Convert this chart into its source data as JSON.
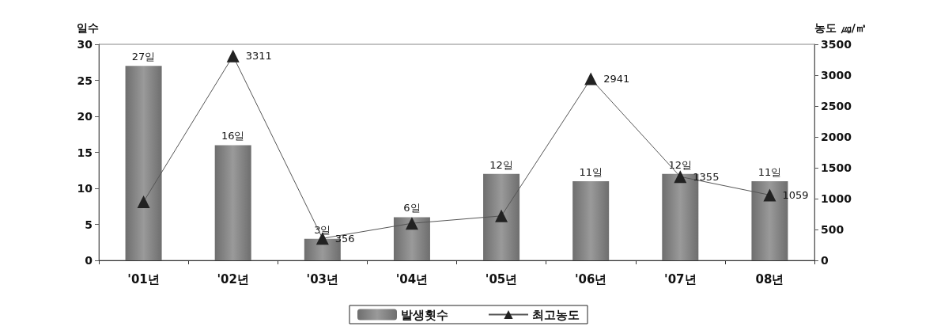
{
  "chart_data": {
    "type": "bar",
    "ylabel": "일수",
    "y2label": "농도 ㎍/㎥",
    "categories": [
      "'01년",
      "'02년",
      "'03년",
      "'04년",
      "'05년",
      "'06년",
      "'07년",
      "08년"
    ],
    "series": [
      {
        "name": "발생횟수",
        "color": "#9a9a9a",
        "values": [
          27,
          16,
          3,
          6,
          12,
          11,
          12,
          11
        ],
        "value_labels": [
          "27일",
          "16일",
          "3일",
          "6일",
          "12일",
          "11일",
          "12일",
          "11일"
        ]
      },
      {
        "name": "최고농도",
        "type": "line",
        "axis": "y2",
        "color": "#222222",
        "marker": "triangle",
        "values": [
          950,
          3311,
          356,
          600,
          720,
          2941,
          1355,
          1059
        ],
        "value_labels": [
          null,
          "3311",
          "356",
          null,
          null,
          "2941",
          "1355",
          "1059"
        ]
      }
    ],
    "ylim": [
      0,
      30
    ],
    "yticks": [
      0,
      5,
      10,
      15,
      20,
      25,
      30
    ],
    "y2lim": [
      0,
      3500
    ],
    "y2ticks": [
      0,
      500,
      1000,
      1500,
      2000,
      2500,
      3000,
      3500
    ],
    "grid": false,
    "legend": "bottom"
  }
}
